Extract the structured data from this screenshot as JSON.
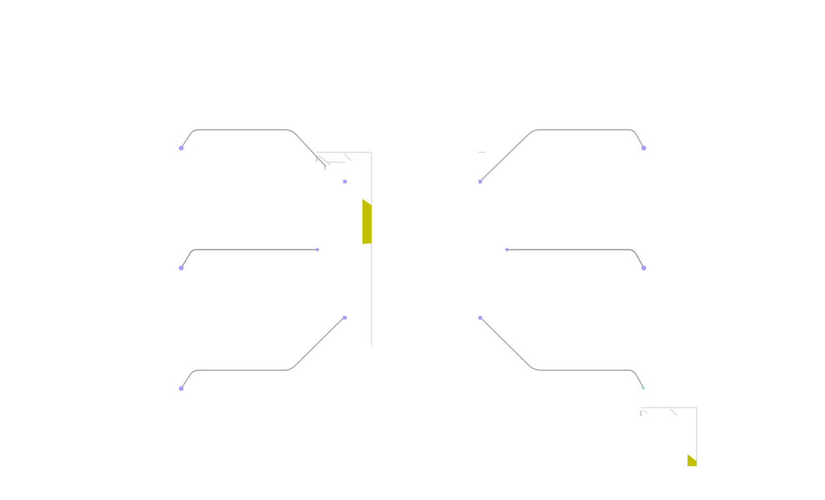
{
  "colors": {
    "background": "#ffffff",
    "connector": "#9a9a9a",
    "connector_dark": "#6f6f6f",
    "port": "#a39bf5",
    "accent_fill": "#c2c000",
    "frame": "#c8c8c8",
    "frame_tick": "#9a9a9a",
    "small_mark": "#7ad3c8"
  },
  "diagram": {
    "connectors": [
      {
        "id": "left-top",
        "side": "left",
        "row": "top"
      },
      {
        "id": "left-middle",
        "side": "left",
        "row": "middle"
      },
      {
        "id": "left-bottom",
        "side": "left",
        "row": "bottom"
      },
      {
        "id": "right-top",
        "side": "right",
        "row": "top"
      },
      {
        "id": "right-middle",
        "side": "right",
        "row": "middle"
      },
      {
        "id": "right-bottom",
        "side": "right",
        "row": "bottom"
      }
    ],
    "ports": {
      "round": 6,
      "square": 4,
      "diamond": 2
    },
    "frames": [
      {
        "id": "central-frame",
        "has_accent": true
      },
      {
        "id": "corner-frame",
        "has_accent": true
      }
    ]
  }
}
